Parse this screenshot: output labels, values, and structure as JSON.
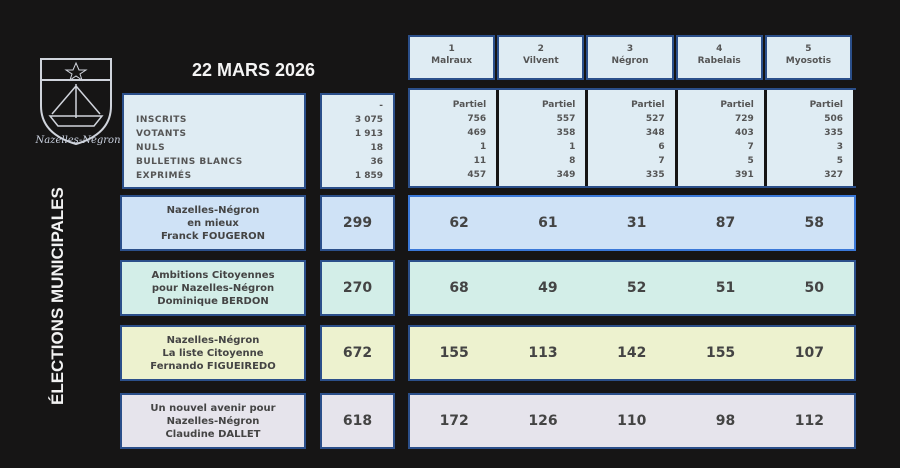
{
  "header": {
    "date": "22 MARS 2026",
    "side_title": "ÉLECTIONS MUNICIPALES",
    "town_logo_text": "Nazelles-Négron"
  },
  "colors": {
    "background": "#161515",
    "border": "#2b4f8a",
    "row1": "#cfe2f6",
    "row2": "#d3eee8",
    "row3": "#edf2cf",
    "row4": "#e6e4ec"
  },
  "bureaux": [
    {
      "num": "1",
      "name": "Malraux"
    },
    {
      "num": "2",
      "name": "Vilvent"
    },
    {
      "num": "3",
      "name": "Négron"
    },
    {
      "num": "4",
      "name": "Rabelais"
    },
    {
      "num": "5",
      "name": "Myosotis"
    }
  ],
  "stats": {
    "labels": [
      "INSCRITS",
      "VOTANTS",
      "NULS",
      "BULLETINS BLANCS",
      "EXPRIMÉS"
    ],
    "totals": {
      "dash": "-",
      "values": [
        "3 075",
        "1 913",
        "18",
        "36",
        "1 859"
      ]
    },
    "bureaux": [
      {
        "status": "Partiel",
        "values": [
          "756",
          "469",
          "1",
          "11",
          "457"
        ]
      },
      {
        "status": "Partiel",
        "values": [
          "557",
          "358",
          "1",
          "8",
          "349"
        ]
      },
      {
        "status": "Partiel",
        "values": [
          "527",
          "348",
          "6",
          "7",
          "335"
        ]
      },
      {
        "status": "Partiel",
        "values": [
          "729",
          "403",
          "7",
          "5",
          "391"
        ]
      },
      {
        "status": "Partiel",
        "values": [
          "506",
          "335",
          "3",
          "5",
          "327"
        ]
      }
    ]
  },
  "lists": [
    {
      "lines": [
        "Nazelles-Négron",
        "en mieux",
        "Franck FOUGERON"
      ],
      "total": "299",
      "votes": [
        "62",
        "61",
        "31",
        "87",
        "58"
      ]
    },
    {
      "lines": [
        "Ambitions Citoyennes",
        "pour Nazelles-Négron",
        "Dominique BERDON"
      ],
      "total": "270",
      "votes": [
        "68",
        "49",
        "52",
        "51",
        "50"
      ]
    },
    {
      "lines": [
        "Nazelles-Négron",
        "La liste Citoyenne",
        "Fernando FIGUEIREDO"
      ],
      "total": "672",
      "votes": [
        "155",
        "113",
        "142",
        "155",
        "107"
      ]
    },
    {
      "lines": [
        "Un nouvel avenir pour",
        "Nazelles-Négron",
        "Claudine DALLET"
      ],
      "total": "618",
      "votes": [
        "172",
        "126",
        "110",
        "98",
        "112"
      ]
    }
  ]
}
